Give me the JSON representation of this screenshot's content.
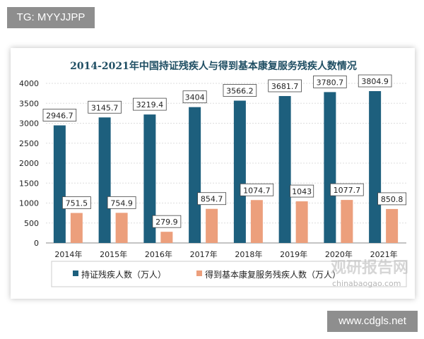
{
  "watermark_top": "TG: MYYJJPP",
  "watermark_bottom": "www.cdgls.net",
  "chart_watermark": {
    "name": "观研报告网",
    "url": "chinabaogao.com"
  },
  "colors": {
    "series1": "#1d5f7d",
    "series2": "#ec9f7c",
    "title": "#1f4e63"
  },
  "chart_data": {
    "type": "bar",
    "title": "2014-2021年中国持证残疾人与得到基本康复服务残疾人数情况",
    "categories": [
      "2014年",
      "2015年",
      "2016年",
      "2017年",
      "2018年",
      "2019年",
      "2020年",
      "2021年"
    ],
    "series": [
      {
        "name": "持证残疾人数（万人）",
        "values": [
          2946.7,
          3145.7,
          3219.4,
          3404,
          3566.2,
          3681.7,
          3780.7,
          3804.9
        ],
        "labels": [
          "2946.7",
          "3145.7",
          "3219.4",
          "3404",
          "3566.2",
          "3681.7",
          "3780.7",
          "3804.9"
        ]
      },
      {
        "name": "得到基本康复服务残疾人数（万人）",
        "values": [
          751.5,
          754.9,
          279.9,
          854.7,
          1074.7,
          1043,
          1077.7,
          850.8
        ],
        "labels": [
          "751.5",
          "754.9",
          "279.9",
          "854.7",
          "1074.7",
          "1043",
          "1077.7",
          "850.8"
        ]
      }
    ],
    "yticks": [
      "0",
      "500",
      "1000",
      "1500",
      "2000",
      "2500",
      "3000",
      "3500",
      "4000"
    ],
    "ylim": [
      0,
      4000
    ],
    "grid": true,
    "legend": "bottom"
  }
}
